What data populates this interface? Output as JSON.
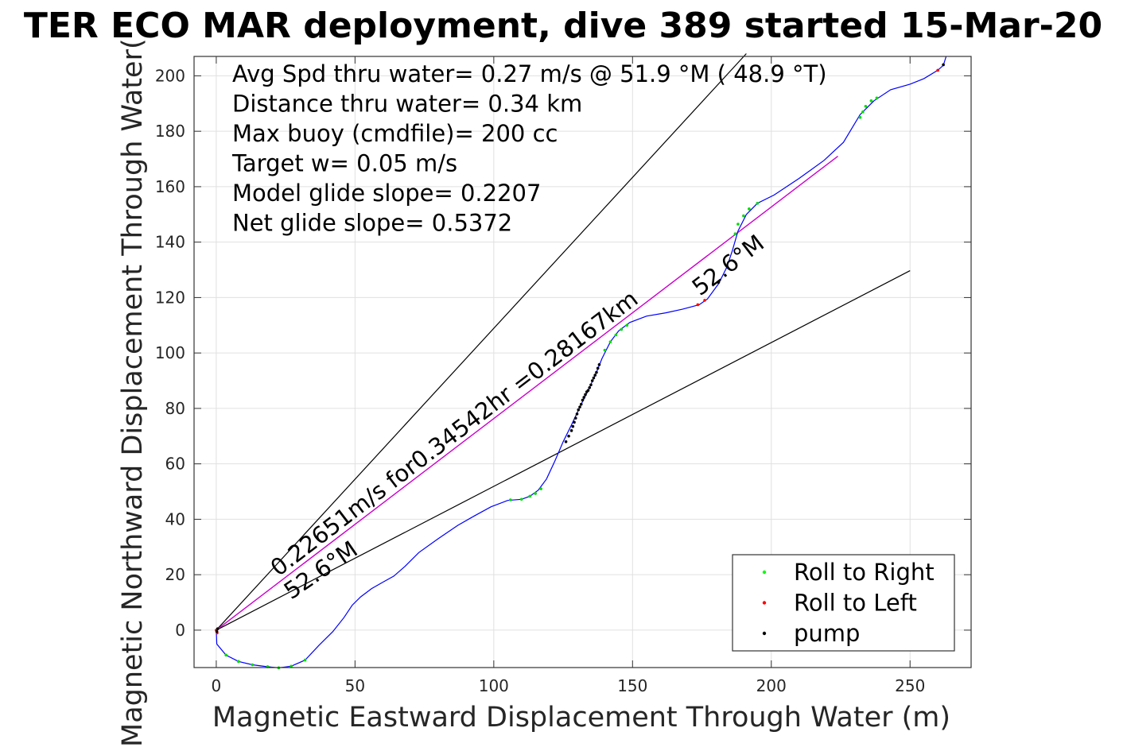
{
  "chart_data": {
    "type": "line",
    "title": "TER ECO MAR deployment, dive 389 started 15-Mar-20",
    "xlabel": "Magnetic Eastward Displacement Through Water (m)",
    "ylabel": "Magnetic Northward Displacement Through Water(",
    "xlim": [
      -8,
      272
    ],
    "ylim": [
      -13.5,
      207
    ],
    "xticks": [
      0,
      50,
      100,
      150,
      200,
      250
    ],
    "yticks": [
      0,
      20,
      40,
      60,
      80,
      100,
      120,
      140,
      160,
      180,
      200
    ],
    "grid": true,
    "legend_position": "bottom-right",
    "legend": [
      {
        "label": "Roll to Right",
        "color": "#00ff00"
      },
      {
        "label": "Roll to Left",
        "color": "#ff0000"
      },
      {
        "label": "pump",
        "color": "#000000"
      }
    ],
    "info_lines": [
      "Avg Spd thru water=  0.27 m/s @  51.9 °M ( 48.9 °T)",
      "Distance thru water=  0.34 km",
      "Max buoy (cmdfile)= 200 cc",
      "Target w= 0.05 m/s",
      "Model glide slope= 0.2207",
      "Net glide slope= 0.5372"
    ],
    "annotations": {
      "track_label": "0.22651m/s for0.34542hr =0.28167km",
      "heading_lower": "52.6°M",
      "heading_upper": "52.6°M"
    },
    "colors": {
      "track": "#0000ff",
      "mean_line": "#cc00cc",
      "cone_lines": "#000000",
      "grid": "#e0e0e0"
    },
    "series": [
      {
        "points": [
          [
            0,
            0
          ],
          [
            0.2,
            -5
          ],
          [
            3.5,
            -9
          ],
          [
            8,
            -11.3
          ],
          [
            13,
            -12.5
          ],
          [
            18.5,
            -13.2
          ],
          [
            22.5,
            -13.6
          ],
          [
            27,
            -13.0
          ],
          [
            32,
            -10.8
          ],
          [
            37,
            -5.5
          ],
          [
            42,
            -0.5
          ],
          [
            46,
            4.5
          ],
          [
            49,
            9.0
          ],
          [
            52,
            12.0
          ],
          [
            56,
            15.0
          ],
          [
            60,
            17.3
          ],
          [
            64,
            19.5
          ],
          [
            68,
            23.0
          ],
          [
            73,
            28.0
          ],
          [
            80,
            33.0
          ],
          [
            87,
            37.8
          ],
          [
            93,
            41.2
          ],
          [
            99,
            44.5
          ],
          [
            105,
            46.8
          ],
          [
            110,
            47.2
          ],
          [
            113,
            48.3
          ],
          [
            116,
            50.5
          ],
          [
            119,
            54.5
          ],
          [
            122,
            61.0
          ],
          [
            125,
            68.0
          ],
          [
            128,
            74.0
          ],
          [
            131,
            80.5
          ],
          [
            134,
            86.5
          ],
          [
            137,
            93.0
          ],
          [
            139,
            98.0
          ],
          [
            142,
            104.0
          ],
          [
            145,
            108.0
          ],
          [
            149,
            111.0
          ],
          [
            155,
            113.3
          ],
          [
            162,
            114.5
          ],
          [
            168,
            115.8
          ],
          [
            174,
            117.4
          ],
          [
            177,
            119.5
          ],
          [
            181,
            125.0
          ],
          [
            184,
            131.0
          ],
          [
            186,
            137.0
          ],
          [
            188,
            144.0
          ],
          [
            191,
            150.0
          ],
          [
            195,
            154.0
          ],
          [
            201,
            157.0
          ],
          [
            210,
            163.0
          ],
          [
            219,
            169.5
          ],
          [
            226,
            176.0
          ],
          [
            232,
            186.0
          ],
          [
            237,
            191.0
          ],
          [
            243,
            195.0
          ],
          [
            250,
            197.0
          ],
          [
            255,
            199.0
          ],
          [
            260,
            202.0
          ],
          [
            262,
            203.8
          ],
          [
            263,
            207.0
          ]
        ]
      }
    ],
    "markers": {
      "roll_right": [
        [
          3.5,
          -9
        ],
        [
          8,
          -11.3
        ],
        [
          13,
          -12.5
        ],
        [
          18.5,
          -13.2
        ],
        [
          22.5,
          -13.6
        ],
        [
          27,
          -13.0
        ],
        [
          32,
          -10.8
        ],
        [
          106,
          47.0
        ],
        [
          110,
          47.2
        ],
        [
          113,
          48.3
        ],
        [
          115,
          49.3
        ],
        [
          117,
          51.0
        ],
        [
          140,
          101.0
        ],
        [
          142,
          104.0
        ],
        [
          144,
          106.5
        ],
        [
          146,
          108.5
        ],
        [
          148,
          110.0
        ],
        [
          187,
          143.0
        ],
        [
          188,
          146.5
        ],
        [
          190,
          149.5
        ],
        [
          192,
          152.0
        ],
        [
          195,
          154.0
        ],
        [
          232,
          185.0
        ],
        [
          233,
          187.0
        ],
        [
          234,
          189.0
        ],
        [
          236,
          191.0
        ],
        [
          238,
          192.0
        ]
      ],
      "roll_left": [
        [
          0,
          0
        ],
        [
          0.3,
          -1
        ],
        [
          173.5,
          117.4
        ],
        [
          176,
          119.0
        ],
        [
          260,
          202.0
        ]
      ],
      "pump": [
        [
          0.2,
          -0.5
        ],
        [
          0.5,
          0.5
        ],
        [
          126,
          68.0
        ],
        [
          127,
          70.0
        ],
        [
          128,
          72.0
        ],
        [
          128.5,
          73.5
        ],
        [
          129,
          75.0
        ],
        [
          129.5,
          76.5
        ],
        [
          130,
          78.0
        ],
        [
          130.5,
          79.5
        ],
        [
          131,
          80.5
        ],
        [
          131.5,
          81.5
        ],
        [
          132,
          83.0
        ],
        [
          132.5,
          84.0
        ],
        [
          133,
          85.0
        ],
        [
          133.5,
          86.0
        ],
        [
          134,
          86.5
        ],
        [
          134.5,
          87.5
        ],
        [
          135,
          88.5
        ],
        [
          135.5,
          90.0
        ],
        [
          136,
          91.0
        ],
        [
          136.5,
          92.0
        ],
        [
          137,
          93.0
        ],
        [
          137.5,
          94.5
        ],
        [
          138,
          95.8
        ],
        [
          181,
          125.5
        ],
        [
          262,
          204.0
        ]
      ]
    },
    "mean_line": [
      [
        0,
        0
      ],
      [
        224,
        171
      ]
    ],
    "cone_lines": [
      [
        [
          0,
          0
        ],
        [
          191,
          208
        ]
      ],
      [
        [
          0,
          0
        ],
        [
          250,
          129.7
        ]
      ]
    ]
  }
}
